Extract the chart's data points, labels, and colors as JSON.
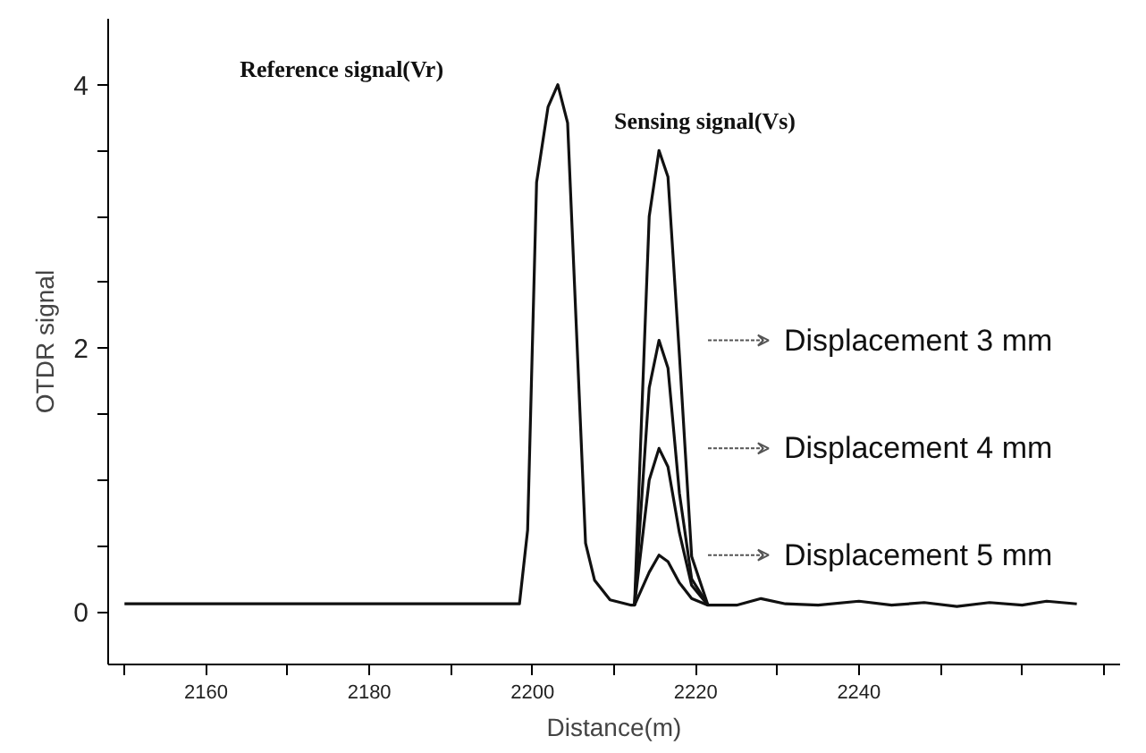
{
  "chart_data": {
    "type": "line",
    "xlabel": "Distance(m)",
    "ylabel": "OTDR signal",
    "xlim": [
      2148,
      2272
    ],
    "ylim": [
      -0.4,
      4.5
    ],
    "xticks": [
      {
        "value": 2150,
        "label": null
      },
      2160,
      {
        "value": 2170,
        "label": null
      },
      2180,
      {
        "value": 2190,
        "label": null
      },
      2200,
      {
        "value": 2210,
        "label": null
      },
      2220,
      {
        "value": 2230,
        "label": null
      },
      2240,
      {
        "value": 2250,
        "label": null
      },
      {
        "value": 2260,
        "label": null
      },
      {
        "value": 2270,
        "label": null
      }
    ],
    "yticks": [
      0,
      {
        "value": 0.5,
        "label": null
      },
      {
        "value": 1,
        "label": null
      },
      {
        "value": 1.5,
        "label": null
      },
      2,
      {
        "value": 2.5,
        "label": null
      },
      {
        "value": 3,
        "label": null
      },
      {
        "value": 3.5,
        "label": null
      },
      4
    ],
    "grid": false,
    "marker": "none",
    "line_style": "solid",
    "series": [
      {
        "color": "#111111",
        "x": [
          2150,
          2198.4,
          2199.4,
          2200.5,
          2201.9,
          2203.1,
          2204.3,
          2206.5,
          2207.6,
          2209.5,
          2212.1,
          2212.5,
          2214.3,
          2215.5,
          2216.6,
          2218,
          2219.5,
          2221.5,
          2225,
          2228,
          2231,
          2235,
          2240,
          2244,
          2248,
          2252,
          2256,
          2260,
          2263,
          2266.7
        ],
        "values": [
          0.06,
          0.06,
          0.62,
          3.26,
          3.83,
          4.0,
          3.71,
          0.52,
          0.24,
          0.09,
          0.05,
          0.05,
          3.0,
          3.5,
          3.3,
          1.95,
          0.42,
          0.05,
          0.05,
          0.1,
          0.06,
          0.05,
          0.08,
          0.05,
          0.07,
          0.04,
          0.07,
          0.05,
          0.08,
          0.06
        ]
      },
      {
        "name": "Displacement 3 mm",
        "color": "#111111",
        "x": [
          2212.5,
          2214.3,
          2215.5,
          2216.6,
          2218,
          2219.5,
          2221.5
        ],
        "values": [
          0.05,
          1.7,
          2.06,
          1.85,
          0.9,
          0.25,
          0.05
        ]
      },
      {
        "name": "Displacement 4 mm",
        "color": "#111111",
        "x": [
          2212.5,
          2214.3,
          2215.5,
          2216.6,
          2218,
          2219.5,
          2221.5
        ],
        "values": [
          0.05,
          1.0,
          1.24,
          1.1,
          0.6,
          0.2,
          0.05
        ]
      },
      {
        "name": "Displacement 5 mm",
        "color": "#111111",
        "x": [
          2212.5,
          2214.3,
          2215.5,
          2216.6,
          2218,
          2219.5,
          2221.5
        ],
        "values": [
          0.05,
          0.3,
          0.43,
          0.38,
          0.22,
          0.1,
          0.05
        ]
      }
    ],
    "annotations": [
      "Reference signal(Vr)",
      "Sensing signal(Vs)"
    ]
  }
}
